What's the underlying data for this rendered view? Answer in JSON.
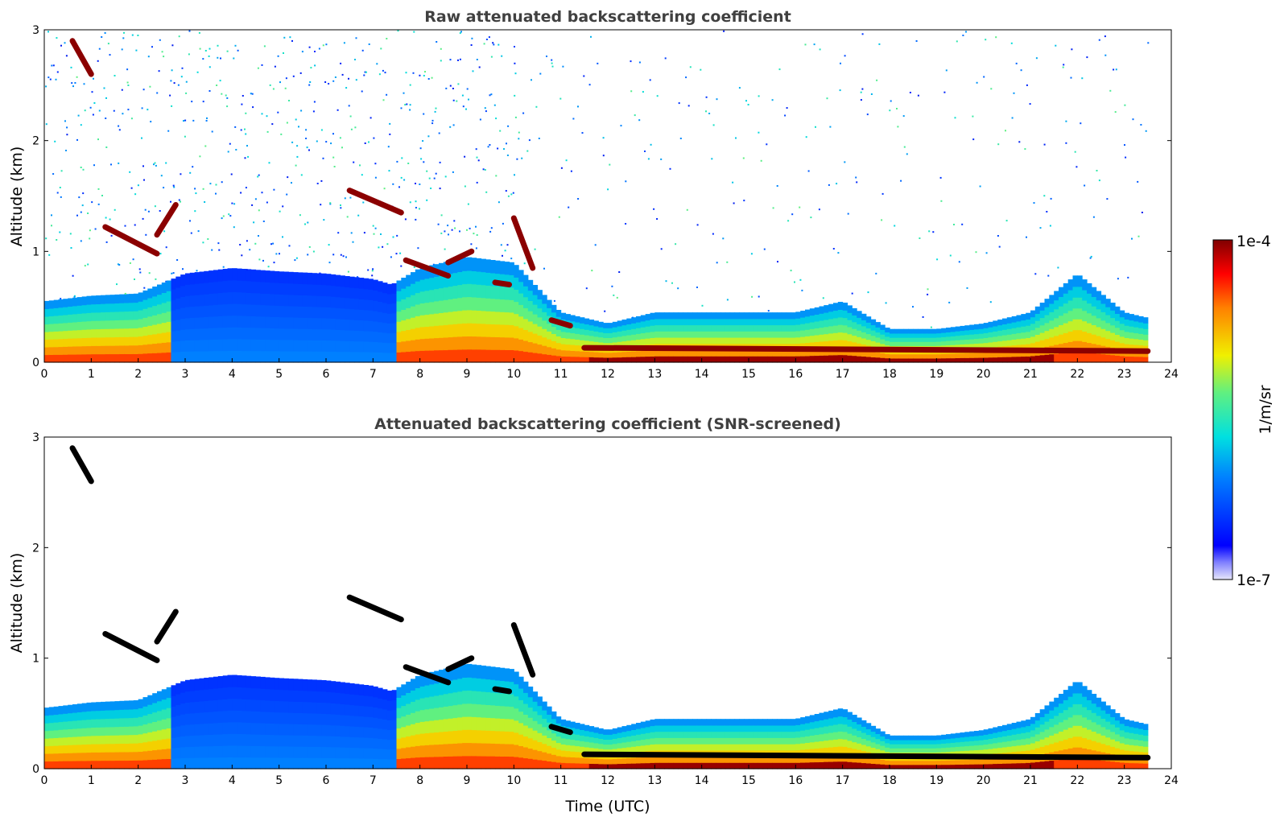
{
  "chart_data": [
    {
      "type": "heatmap",
      "title": "Raw attenuated backscattering coefficient",
      "xlabel": "",
      "ylabel": "Altitude (km)",
      "xlim": [
        0,
        24
      ],
      "ylim": [
        0,
        3
      ],
      "xticks": [
        "0",
        "1",
        "2",
        "3",
        "4",
        "5",
        "6",
        "7",
        "8",
        "9",
        "10",
        "11",
        "12",
        "13",
        "14",
        "15",
        "16",
        "17",
        "18",
        "19",
        "20",
        "21",
        "22",
        "23",
        "24"
      ],
      "yticks": [
        "0",
        "1",
        "2",
        "3"
      ],
      "screened": false
    },
    {
      "type": "heatmap",
      "title": "Attenuated backscattering coefficient (SNR-screened)",
      "xlabel": "Time (UTC)",
      "ylabel": "Altitude (km)",
      "xlim": [
        0,
        24
      ],
      "ylim": [
        0,
        3
      ],
      "xticks": [
        "0",
        "1",
        "2",
        "3",
        "4",
        "5",
        "6",
        "7",
        "8",
        "9",
        "10",
        "11",
        "12",
        "13",
        "14",
        "15",
        "16",
        "17",
        "18",
        "19",
        "20",
        "21",
        "22",
        "23",
        "24"
      ],
      "yticks": [
        "0",
        "1",
        "2",
        "3"
      ],
      "screened": true
    }
  ],
  "colorbar": {
    "label": "1/m/sr",
    "max_label": "1e-4",
    "min_label": "1e-7",
    "colormap": "jet",
    "scale": "log"
  },
  "features": {
    "data_end_hour": 23.5,
    "boundary_layer_top_km": [
      [
        0,
        0.55
      ],
      [
        1,
        0.6
      ],
      [
        2,
        0.62
      ],
      [
        3,
        0.8
      ],
      [
        4,
        0.85
      ],
      [
        5,
        0.82
      ],
      [
        6,
        0.8
      ],
      [
        7,
        0.75
      ],
      [
        7.4,
        0.7
      ],
      [
        8,
        0.85
      ],
      [
        9,
        0.95
      ],
      [
        10,
        0.9
      ],
      [
        11,
        0.45
      ],
      [
        12,
        0.35
      ],
      [
        13,
        0.45
      ],
      [
        14,
        0.45
      ],
      [
        15,
        0.45
      ],
      [
        16,
        0.45
      ],
      [
        17,
        0.55
      ],
      [
        18,
        0.3
      ],
      [
        19,
        0.3
      ],
      [
        20,
        0.35
      ],
      [
        21,
        0.45
      ],
      [
        22,
        0.8
      ],
      [
        23,
        0.45
      ],
      [
        23.5,
        0.4
      ]
    ],
    "cloud_segments_km": [
      {
        "t0": 0.6,
        "t1": 1.0,
        "alt0": 2.9,
        "alt1": 2.6
      },
      {
        "t0": 1.3,
        "t1": 2.4,
        "alt0": 1.22,
        "alt1": 0.98
      },
      {
        "t0": 2.4,
        "t1": 2.8,
        "alt0": 1.15,
        "alt1": 1.42
      },
      {
        "t0": 6.5,
        "t1": 7.6,
        "alt0": 1.55,
        "alt1": 1.35
      },
      {
        "t0": 7.7,
        "t1": 8.6,
        "alt0": 0.92,
        "alt1": 0.78
      },
      {
        "t0": 8.6,
        "t1": 9.1,
        "alt0": 0.9,
        "alt1": 1.0
      },
      {
        "t0": 9.6,
        "t1": 9.9,
        "alt0": 0.72,
        "alt1": 0.7
      },
      {
        "t0": 10.0,
        "t1": 10.4,
        "alt0": 1.3,
        "alt1": 0.85
      },
      {
        "t0": 10.8,
        "t1": 11.2,
        "alt0": 0.38,
        "alt1": 0.33
      },
      {
        "t0": 11.5,
        "t1": 23.5,
        "alt0": 0.13,
        "alt1": 0.1
      }
    ]
  }
}
